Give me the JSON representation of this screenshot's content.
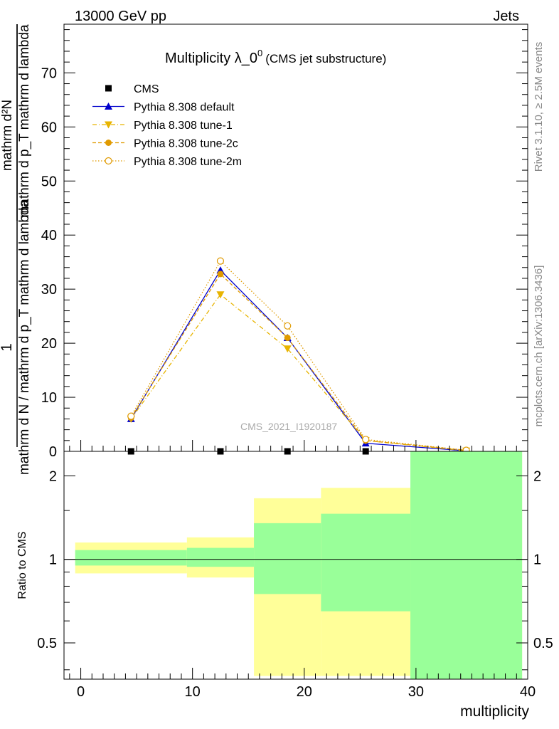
{
  "header": {
    "left": "13000 GeV pp",
    "right": "Jets"
  },
  "side_labels": {
    "rivet": "Rivet 3.1.10, ≥ 2.5M events",
    "mcplots": "mcplots.cern.ch [arXiv:1306.3436]"
  },
  "chart_data": [
    {
      "type": "line",
      "title": "Multiplicity λ_0",
      "title_superscript": "0",
      "subtitle": "(CMS jet substructure)",
      "ylabel_numerator": "1",
      "ylabel_denominator": "mathrm d N / mathrm d p_T mathrm d lambda",
      "ylabel_top": "mathrm d²N",
      "ylabel_top_denominator": "mathrm d p_T mathrm d lambda",
      "watermark": "CMS_2021_I1920187",
      "xlim": [
        -1.5,
        40
      ],
      "ylim": [
        0,
        79
      ],
      "yticks": [
        0,
        10,
        20,
        30,
        40,
        50,
        60,
        70
      ],
      "ytick_labels": [
        "0",
        "10",
        "20",
        "30",
        "40",
        "50",
        "60",
        "70"
      ],
      "legend_position": "top-left",
      "series": [
        {
          "name": "CMS",
          "marker": "square",
          "color": "#000000",
          "x": [
            4.5,
            12.5,
            18.5,
            25.5,
            34.5
          ],
          "y": [
            0.0,
            0.0,
            0.0,
            0.0,
            0.0
          ]
        },
        {
          "name": "Pythia 8.308 default",
          "marker": "triangle-up",
          "line": "solid",
          "color": "#0000cc",
          "x": [
            4.5,
            12.5,
            18.5,
            25.5,
            34.5
          ],
          "y": [
            6.0,
            33.5,
            21.0,
            1.5,
            0.1
          ]
        },
        {
          "name": "Pythia 8.308 tune-1",
          "marker": "triangle-down",
          "line": "dashdot",
          "color": "#e8b400",
          "x": [
            4.5,
            12.5,
            18.5,
            25.5,
            34.5
          ],
          "y": [
            6.0,
            29.0,
            19.0,
            2.0,
            0.1
          ]
        },
        {
          "name": "Pythia 8.308 tune-2c",
          "marker": "circle-filled",
          "line": "dashed",
          "color": "#e09a00",
          "x": [
            4.5,
            12.5,
            18.5,
            25.5,
            34.5
          ],
          "y": [
            6.2,
            32.8,
            21.0,
            2.0,
            0.2
          ]
        },
        {
          "name": "Pythia 8.308 tune-2m",
          "marker": "circle-open",
          "line": "dotted",
          "color": "#e09a00",
          "x": [
            4.5,
            12.5,
            18.5,
            25.5,
            34.5
          ],
          "y": [
            6.5,
            35.2,
            23.2,
            2.2,
            0.2
          ]
        }
      ]
    },
    {
      "type": "area",
      "ylabel": "Ratio to CMS",
      "xlabel": "multiplicity",
      "scale": "log",
      "xlim": [
        -1.5,
        40
      ],
      "ylim": [
        0.37,
        2.45
      ],
      "reference_line": 1,
      "yticks": [
        0.5,
        1,
        2
      ],
      "ytick_labels": [
        "0.5",
        "1",
        "2"
      ],
      "xticks": [
        0,
        10,
        20,
        30,
        40
      ],
      "xtick_labels": [
        "0",
        "10",
        "20",
        "30",
        "40"
      ],
      "bins": [
        {
          "xlo": -0.5,
          "xhi": 9.5,
          "green": [
            0.95,
            1.08
          ],
          "yellow": [
            0.89,
            1.15
          ]
        },
        {
          "xlo": 9.5,
          "xhi": 15.5,
          "green": [
            0.94,
            1.1
          ],
          "yellow": [
            0.86,
            1.2
          ]
        },
        {
          "xlo": 15.5,
          "xhi": 21.5,
          "green": [
            0.75,
            1.35
          ],
          "yellow": [
            0.38,
            1.66
          ]
        },
        {
          "xlo": 21.5,
          "xhi": 29.5,
          "green": [
            0.65,
            1.46
          ],
          "yellow": [
            0.38,
            1.81
          ]
        },
        {
          "xlo": 29.5,
          "xhi": 39.5,
          "green": [
            0.37,
            2.45
          ],
          "yellow": [
            0.37,
            2.45
          ]
        }
      ],
      "colors": {
        "green": "#99ff99",
        "yellow": "#ffff99"
      }
    }
  ]
}
